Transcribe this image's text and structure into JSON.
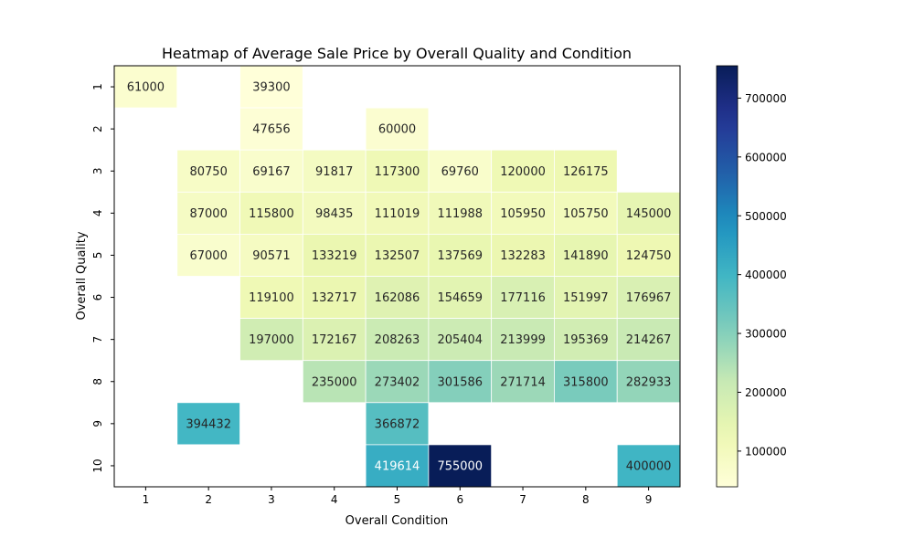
{
  "chart_data": {
    "type": "heatmap",
    "title": "Heatmap of Average Sale Price by Overall Quality and Condition",
    "xlabel": "Overall Condition",
    "ylabel": "Overall Quality",
    "x_categories": [
      "1",
      "2",
      "3",
      "4",
      "5",
      "6",
      "7",
      "8",
      "9"
    ],
    "y_categories": [
      "1",
      "2",
      "3",
      "4",
      "5",
      "6",
      "7",
      "8",
      "9",
      "10"
    ],
    "values": [
      [
        61000,
        null,
        39300,
        null,
        null,
        null,
        null,
        null,
        null
      ],
      [
        null,
        null,
        47656,
        null,
        60000,
        null,
        null,
        null,
        null
      ],
      [
        null,
        80750,
        69167,
        91817,
        117300,
        69760,
        120000,
        126175,
        null
      ],
      [
        null,
        87000,
        115800,
        98435,
        111019,
        111988,
        105950,
        105750,
        145000
      ],
      [
        null,
        67000,
        90571,
        133219,
        132507,
        137569,
        132283,
        141890,
        124750
      ],
      [
        null,
        null,
        119100,
        132717,
        162086,
        154659,
        177116,
        151997,
        176967
      ],
      [
        null,
        null,
        197000,
        172167,
        208263,
        205404,
        213999,
        195369,
        214267
      ],
      [
        null,
        null,
        null,
        235000,
        273402,
        301586,
        271714,
        315800,
        282933
      ],
      [
        null,
        394432,
        null,
        null,
        366872,
        null,
        null,
        null,
        null
      ],
      [
        null,
        null,
        null,
        null,
        419614,
        755000,
        null,
        null,
        400000
      ]
    ],
    "colormap": "YlGnBu",
    "vmin": 39300,
    "vmax": 755000,
    "colorbar_ticks": [
      "100000",
      "200000",
      "300000",
      "400000",
      "500000",
      "600000",
      "700000"
    ]
  }
}
